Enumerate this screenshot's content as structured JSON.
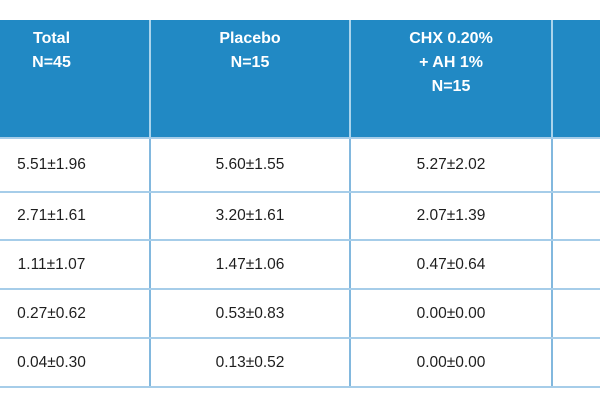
{
  "table": {
    "description": "results-table-mean-sd",
    "colors": {
      "header_bg": "#2189c4",
      "header_text": "#ffffff",
      "border_horizontal": "#a6cde9",
      "border_vertical": "#82b8de",
      "header_divider": "#aad4ec",
      "cell_text": "#1e1e1e",
      "background": "#ffffff"
    },
    "columns": [
      {
        "id": "total",
        "header_lines": [
          "Total",
          "N=45"
        ]
      },
      {
        "id": "placebo",
        "header_lines": [
          "Placebo",
          "N=15"
        ]
      },
      {
        "id": "chx-ah",
        "header_lines": [
          "CHX 0.20%",
          "+ AH 1%",
          "N=15"
        ]
      },
      {
        "id": "cropped",
        "header_lines": []
      }
    ],
    "rows": [
      [
        "5.51±1.96",
        "5.60±1.55",
        "5.27±2.02",
        ""
      ],
      [
        "2.71±1.61",
        "3.20±1.61",
        "2.07±1.39",
        ""
      ],
      [
        "1.11±1.07",
        "1.47±1.06",
        "0.47±0.64",
        ""
      ],
      [
        "0.27±0.62",
        "0.53±0.83",
        "0.00±0.00",
        ""
      ],
      [
        "0.04±0.30",
        "0.13±0.52",
        "0.00±0.00",
        ""
      ]
    ]
  }
}
